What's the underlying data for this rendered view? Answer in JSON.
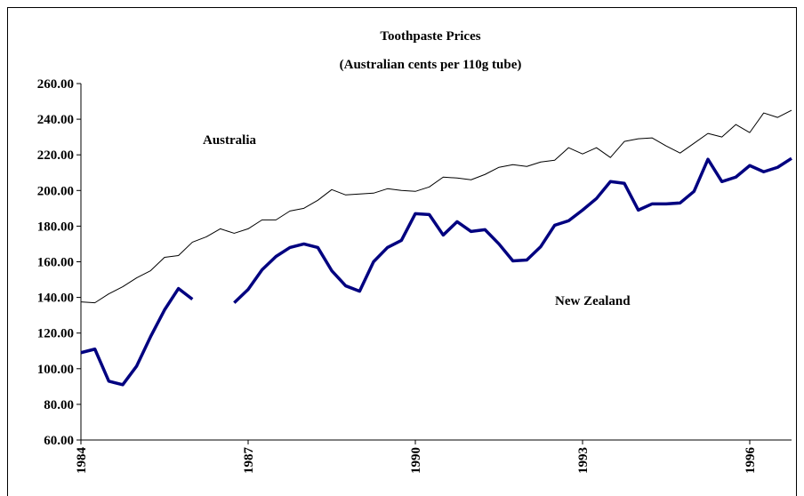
{
  "chart_data": {
    "type": "line",
    "title": "Toothpaste Prices",
    "subtitle": "(Australian cents per 110g tube)",
    "categories": [
      "1984",
      null,
      null,
      null,
      null,
      null,
      null,
      null,
      null,
      null,
      null,
      null,
      "1987",
      null,
      null,
      null,
      null,
      null,
      null,
      null,
      null,
      null,
      null,
      null,
      "1990",
      null,
      null,
      null,
      null,
      null,
      null,
      null,
      null,
      null,
      null,
      null,
      "1993",
      null,
      null,
      null,
      null,
      null,
      null,
      null,
      null,
      null,
      null,
      null,
      "1996",
      null,
      null,
      null
    ],
    "series": [
      {
        "name": "Australia",
        "color": "#000000",
        "width": 1,
        "values": [
          137.5,
          137,
          142,
          146,
          151,
          155,
          162.5,
          163.5,
          171,
          174,
          178.5,
          176,
          178.5,
          183.5,
          183.5,
          188.5,
          190,
          194.5,
          200.5,
          197.5,
          198,
          198.5,
          201,
          200,
          199.5,
          202,
          207.5,
          207,
          206,
          209,
          213,
          214.5,
          213.5,
          216,
          217,
          224,
          220.5,
          224,
          218.5,
          227.5,
          229,
          229.5,
          225,
          221,
          226.5,
          232,
          230,
          237,
          232.5,
          243.5,
          241,
          245
        ]
      },
      {
        "name": "New Zealand",
        "color": "#000080",
        "width": 3.5,
        "values": [
          109,
          111,
          93,
          91,
          101.5,
          118,
          133,
          145,
          139,
          null,
          null,
          137,
          144.5,
          155.5,
          163,
          168,
          170,
          168,
          155,
          146.5,
          143.5,
          160,
          168,
          172,
          187,
          186.5,
          175,
          182.5,
          177,
          178,
          170,
          160.5,
          161,
          168.5,
          180.5,
          183,
          189,
          195.5,
          205,
          204,
          189,
          192.5,
          192.5,
          193,
          199.5,
          217.5,
          205,
          207.5,
          214,
          210.5,
          213,
          218
        ]
      }
    ],
    "ylim": [
      60,
      260
    ],
    "yticks": [
      {
        "value": 60,
        "label": "60.00"
      },
      {
        "value": 80,
        "label": "80.00"
      },
      {
        "value": 100,
        "label": "100.00"
      },
      {
        "value": 120,
        "label": "120.00"
      },
      {
        "value": 140,
        "label": "140.00"
      },
      {
        "value": 160,
        "label": "160.00"
      },
      {
        "value": 180,
        "label": "180.00"
      },
      {
        "value": 200,
        "label": "200.00"
      },
      {
        "value": 220,
        "label": "220.00"
      },
      {
        "value": 240,
        "label": "240.00"
      },
      {
        "value": 260,
        "label": "260.00"
      }
    ],
    "grid": false
  }
}
